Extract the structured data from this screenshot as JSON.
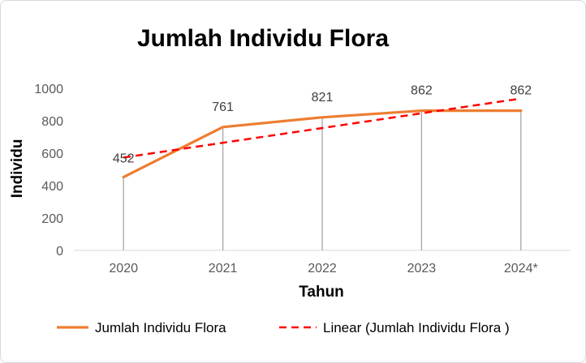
{
  "chart_data": {
    "type": "line",
    "title": "Jumlah Individu Flora",
    "xlabel": "Tahun",
    "ylabel": "Individu",
    "categories": [
      "2020",
      "2021",
      "2022",
      "2023",
      "2024*"
    ],
    "ylim": [
      0,
      1000
    ],
    "yticks": [
      0,
      200,
      400,
      600,
      800,
      1000
    ],
    "series": [
      {
        "name": "Jumlah Individu Flora",
        "values": [
          452,
          761,
          821,
          862,
          862
        ],
        "color": "#ed7d31",
        "style": "solid",
        "data_labels": [
          "452",
          "761",
          "821",
          "862",
          "862"
        ]
      },
      {
        "name": "Linear (Jumlah Individu Flora )",
        "values": [
          573,
          664,
          755,
          846,
          937
        ],
        "color": "#ff0000",
        "style": "dashed"
      }
    ],
    "drop_lines": true,
    "grid": false,
    "legend_position": "bottom"
  }
}
